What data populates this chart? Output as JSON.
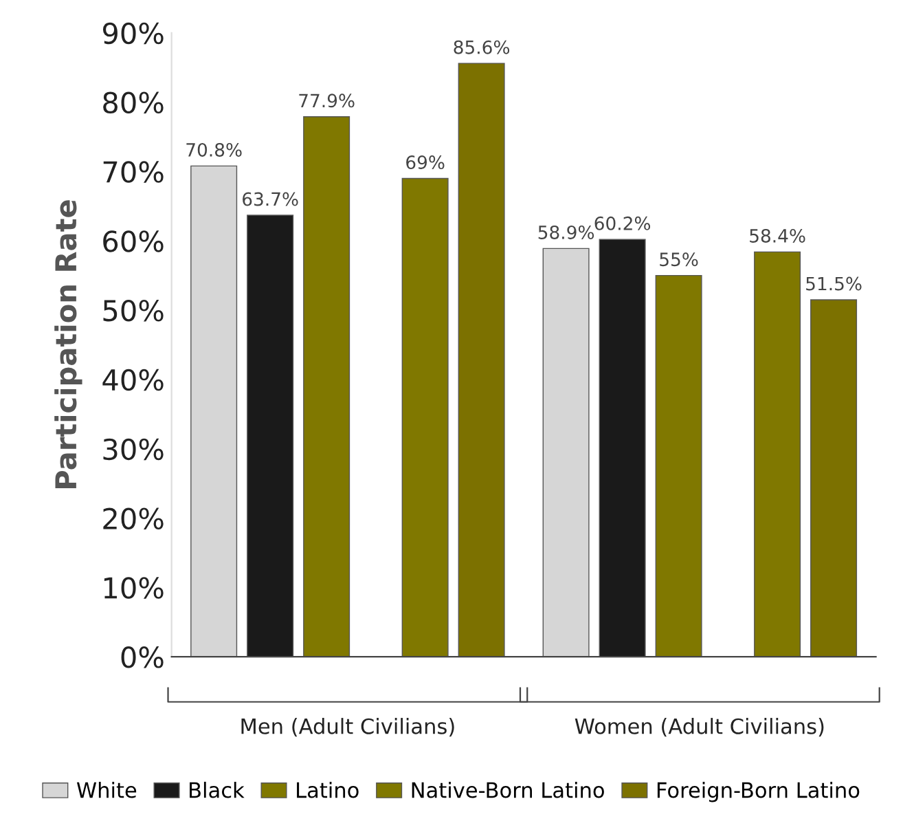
{
  "chart_data": {
    "type": "bar",
    "ylabel": "Participation Rate",
    "categories": [
      "Men (Adult Civilians)",
      "Women (Adult Civilians)"
    ],
    "series": [
      {
        "name": "White",
        "color": "#d6d6d6",
        "values": [
          70.8,
          58.9
        ],
        "value_labels": [
          "70.8%",
          "58.9%"
        ]
      },
      {
        "name": "Black",
        "color": "#1a1a1a",
        "values": [
          63.7,
          60.2
        ],
        "value_labels": [
          "63.7%",
          "60.2%"
        ]
      },
      {
        "name": "Latino",
        "color": "#807800",
        "values": [
          77.9,
          55
        ],
        "value_labels": [
          "77.9%",
          "55%"
        ]
      },
      {
        "name": "Native-Born Latino",
        "color": "#807800",
        "values": [
          69,
          58.4
        ],
        "value_labels": [
          "69%",
          "58.4%"
        ]
      },
      {
        "name": "Foreign-Born Latino",
        "color": "#7c7100",
        "values": [
          85.6,
          51.5
        ],
        "value_labels": [
          "85.6%",
          "51.5%"
        ]
      }
    ],
    "ylim": [
      0,
      90
    ],
    "yticks": [
      {
        "value": 0,
        "label": "0%"
      },
      {
        "value": 10,
        "label": "10%"
      },
      {
        "value": 20,
        "label": "20%"
      },
      {
        "value": 30,
        "label": "30%"
      },
      {
        "value": 40,
        "label": "40%"
      },
      {
        "value": 50,
        "label": "50%"
      },
      {
        "value": 60,
        "label": "60%"
      },
      {
        "value": 70,
        "label": "70%"
      },
      {
        "value": 80,
        "label": "80%"
      },
      {
        "value": 90,
        "label": "90%"
      }
    ],
    "grid": false,
    "legend": "bottom"
  }
}
